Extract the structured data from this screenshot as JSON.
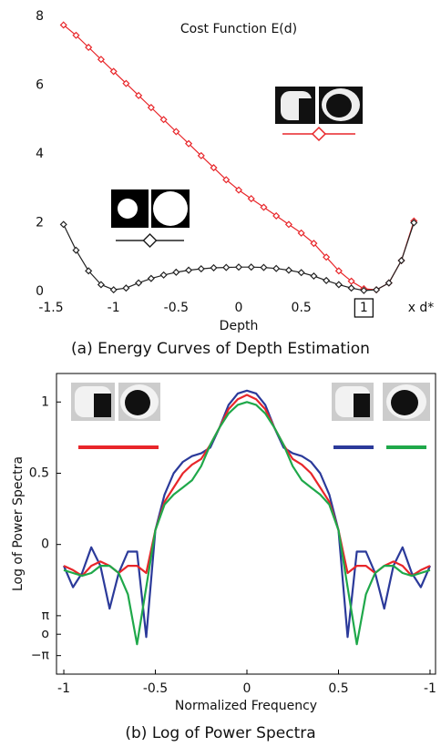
{
  "chart_data": [
    {
      "type": "line",
      "title": "Cost Function E(d)",
      "x_label": "Depth",
      "caption": "(a) Energy Curves of Depth Estimation",
      "x_annotation": "x d*",
      "x": [
        -1.4,
        -1.3,
        -1.2,
        -1.1,
        -1,
        -0.9,
        -0.8,
        -0.7,
        -0.6,
        -0.5,
        -0.4,
        -0.3,
        -0.2,
        -0.1,
        0,
        0.1,
        0.2,
        0.3,
        0.4,
        0.5,
        0.6,
        0.7,
        0.8,
        0.9,
        1,
        1.1,
        1.2,
        1.3,
        1.4
      ],
      "series": [
        {
          "color": "#e8262a",
          "values": [
            7.75,
            7.45,
            7.1,
            6.75,
            6.4,
            6.05,
            5.7,
            5.35,
            5.0,
            4.65,
            4.3,
            3.95,
            3.6,
            3.25,
            2.95,
            2.7,
            2.45,
            2.2,
            1.95,
            1.7,
            1.4,
            1.0,
            0.6,
            0.3,
            0.08,
            0.05,
            0.25,
            0.9,
            2.05
          ]
        },
        {
          "color": "#222222",
          "values": [
            1.95,
            1.2,
            0.6,
            0.2,
            0.05,
            0.1,
            0.25,
            0.38,
            0.48,
            0.56,
            0.62,
            0.66,
            0.69,
            0.7,
            0.71,
            0.71,
            0.7,
            0.67,
            0.62,
            0.55,
            0.45,
            0.32,
            0.2,
            0.1,
            0.03,
            0.05,
            0.25,
            0.9,
            2.0
          ]
        }
      ],
      "markers": "diamond",
      "frame": false,
      "highlight_xtick": 1,
      "xlim": [
        -1.5,
        1.5
      ],
      "xticks": [
        -1.5,
        -1,
        -0.5,
        0,
        0.5,
        1
      ],
      "ylim": [
        0,
        8
      ],
      "yticks": [
        0,
        2,
        4,
        6,
        8
      ]
    },
    {
      "type": "line",
      "x_label": "Normalized Frequency",
      "y_label": "Log of Power Spectra",
      "caption": "(b) Log of Power Spectra",
      "x": [
        -1,
        -0.95,
        -0.9,
        -0.85,
        -0.8,
        -0.75,
        -0.7,
        -0.65,
        -0.6,
        -0.55,
        -0.5,
        -0.45,
        -0.4,
        -0.35,
        -0.3,
        -0.25,
        -0.2,
        -0.15,
        -0.1,
        -0.05,
        0,
        0.05,
        0.1,
        0.15,
        0.2,
        0.25,
        0.3,
        0.35,
        0.4,
        0.45,
        0.5,
        0.55,
        0.6,
        0.65,
        0.7,
        0.75,
        0.8,
        0.85,
        0.9,
        0.95,
        1
      ],
      "series": [
        {
          "color": "#2b3a9a",
          "values": [
            -0.15,
            -0.3,
            -0.2,
            -0.02,
            -0.15,
            -0.45,
            -0.2,
            -0.05,
            -0.05,
            -0.65,
            0.1,
            0.35,
            0.5,
            0.58,
            0.62,
            0.64,
            0.68,
            0.82,
            0.98,
            1.06,
            1.08,
            1.06,
            0.98,
            0.82,
            0.68,
            0.64,
            0.62,
            0.58,
            0.5,
            0.35,
            0.1,
            -0.65,
            -0.05,
            -0.05,
            -0.2,
            -0.45,
            -0.15,
            -0.02,
            -0.2,
            -0.3,
            -0.15
          ]
        },
        {
          "color": "#e8262a",
          "values": [
            -0.15,
            -0.18,
            -0.22,
            -0.15,
            -0.12,
            -0.15,
            -0.2,
            -0.15,
            -0.15,
            -0.2,
            0.1,
            0.3,
            0.4,
            0.5,
            0.56,
            0.6,
            0.7,
            0.82,
            0.95,
            1.02,
            1.05,
            1.02,
            0.95,
            0.82,
            0.7,
            0.6,
            0.56,
            0.5,
            0.4,
            0.3,
            0.1,
            -0.2,
            -0.15,
            -0.15,
            -0.2,
            -0.15,
            -0.12,
            -0.15,
            -0.22,
            -0.18,
            -0.15
          ]
        },
        {
          "color": "#1fa84a",
          "values": [
            -0.18,
            -0.2,
            -0.22,
            -0.2,
            -0.15,
            -0.15,
            -0.2,
            -0.35,
            -0.7,
            -0.3,
            0.1,
            0.28,
            0.35,
            0.4,
            0.45,
            0.55,
            0.7,
            0.82,
            0.92,
            0.98,
            1.0,
            0.98,
            0.92,
            0.82,
            0.7,
            0.55,
            0.45,
            0.4,
            0.35,
            0.28,
            0.1,
            -0.3,
            -0.7,
            -0.35,
            -0.2,
            -0.15,
            -0.15,
            -0.2,
            -0.22,
            -0.2,
            -0.18
          ]
        }
      ],
      "frame": true,
      "xlim": [
        -1.04,
        1.03
      ],
      "xticks": [
        -1,
        -0.5,
        0,
        0.5,
        {
          "value": 1,
          "label": "-1"
        }
      ],
      "ylim": [
        -0.91,
        1.2
      ],
      "yticks": [
        1,
        0.5,
        0,
        {
          "value": -0.5,
          "label": "π"
        },
        {
          "value": -0.63,
          "label": "o"
        },
        {
          "value": -0.78,
          "label": "−π"
        }
      ]
    }
  ]
}
